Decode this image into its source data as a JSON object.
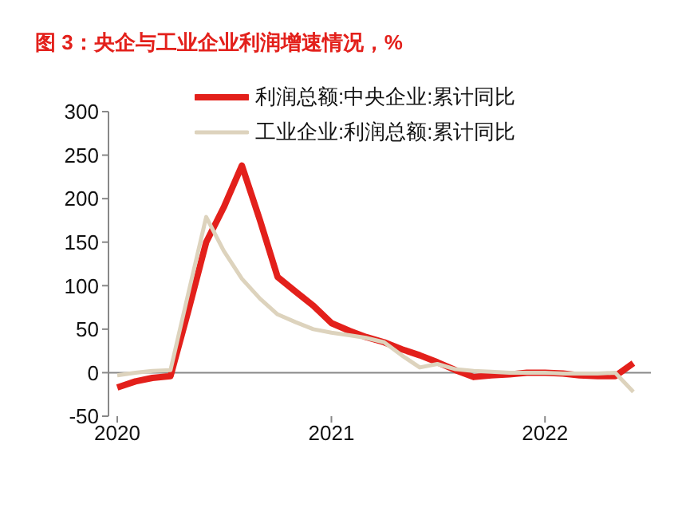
{
  "chart_data": {
    "type": "line",
    "title": "图 3：央企与工业企业利润增速情况，%",
    "x": [
      "2020-01",
      "2020-02",
      "2020-03",
      "2020-04",
      "2020-05",
      "2020-06",
      "2020-07",
      "2020-08",
      "2020-09",
      "2020-10",
      "2020-11",
      "2020-12",
      "2021-01",
      "2021-02",
      "2021-03",
      "2021-04",
      "2021-05",
      "2021-06",
      "2021-07",
      "2021-08",
      "2021-09",
      "2021-10",
      "2021-11",
      "2021-12",
      "2022-01",
      "2022-02",
      "2022-03",
      "2022-04",
      "2022-05",
      "2022-06"
    ],
    "series": [
      {
        "name": "利润总额:中央企业:累计同比",
        "color": "#e3201b",
        "values": [
          -17,
          -10,
          -6,
          -4,
          70,
          150,
          190,
          238,
          175,
          110,
          93,
          77,
          57,
          48,
          41,
          35,
          27,
          20,
          12,
          3,
          -5,
          -3,
          -2,
          0,
          0,
          -1,
          -3,
          -4,
          -4,
          11
        ]
      },
      {
        "name": "工业企业:利润总额:累计同比",
        "color": "#ddd3bd",
        "values": [
          -3,
          0,
          2,
          3,
          90,
          179,
          140,
          108,
          85,
          67,
          58,
          50,
          46,
          43,
          40,
          35,
          20,
          6,
          10,
          4,
          2,
          1,
          0,
          0,
          0,
          -1,
          -1,
          -1,
          0,
          -22
        ]
      }
    ],
    "xlim": [
      "2019-12-17",
      "2022-07-01"
    ],
    "xticks": [
      "2020",
      "2021",
      "2022"
    ],
    "ylim": [
      -50,
      300
    ],
    "yticks": [
      -50,
      0,
      50,
      100,
      150,
      200,
      250,
      300
    ],
    "grid": false,
    "legend": "top",
    "marker": "none",
    "line_style": "solid"
  }
}
